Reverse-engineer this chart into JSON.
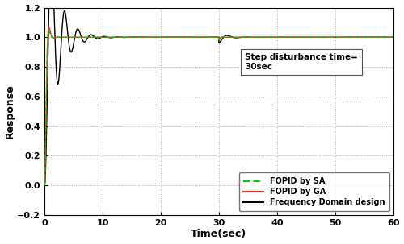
{
  "xlabel": "Time(sec)",
  "ylabel": "Response",
  "xlim": [
    0,
    60
  ],
  "ylim": [
    -0.2,
    1.2
  ],
  "xticks": [
    0,
    10,
    20,
    30,
    40,
    50,
    60
  ],
  "yticks": [
    -0.2,
    0,
    0.2,
    0.4,
    0.6,
    0.8,
    1.0,
    1.2
  ],
  "grid_color": "#aaaaaa",
  "bg_color": "#ffffff",
  "annotation_text": "Step disturbance time=\n30sec",
  "legend_entries": [
    "FOPID by SA",
    "FOPID by GA",
    "Frequency Domain design"
  ],
  "legend_colors": [
    "#00cc00",
    "#ff2222",
    "#000000"
  ],
  "line_width": 1.0,
  "figsize": [
    5.0,
    3.03
  ],
  "dpi": 100
}
